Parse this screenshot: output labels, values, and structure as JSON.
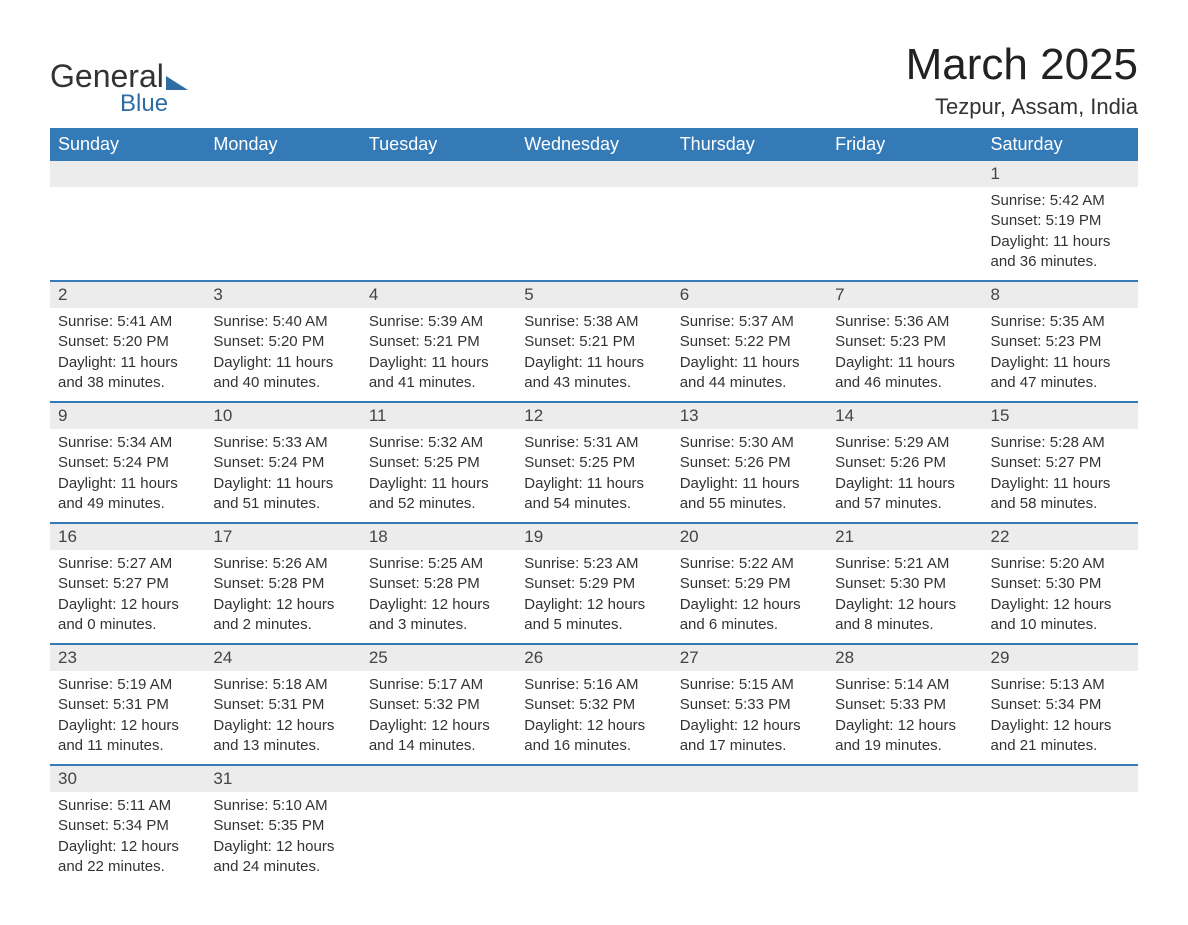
{
  "logo": {
    "text1": "General",
    "text2": "Blue"
  },
  "title": "March 2025",
  "location": "Tezpur, Assam, India",
  "colors": {
    "header_bg": "#337ab7",
    "header_text": "#ffffff",
    "daynum_bg": "#ececec",
    "border": "#337ab7",
    "text": "#333333"
  },
  "day_headers": [
    "Sunday",
    "Monday",
    "Tuesday",
    "Wednesday",
    "Thursday",
    "Friday",
    "Saturday"
  ],
  "weeks": [
    [
      {
        "day": "",
        "sunrise": "",
        "sunset": "",
        "daylight1": "",
        "daylight2": ""
      },
      {
        "day": "",
        "sunrise": "",
        "sunset": "",
        "daylight1": "",
        "daylight2": ""
      },
      {
        "day": "",
        "sunrise": "",
        "sunset": "",
        "daylight1": "",
        "daylight2": ""
      },
      {
        "day": "",
        "sunrise": "",
        "sunset": "",
        "daylight1": "",
        "daylight2": ""
      },
      {
        "day": "",
        "sunrise": "",
        "sunset": "",
        "daylight1": "",
        "daylight2": ""
      },
      {
        "day": "",
        "sunrise": "",
        "sunset": "",
        "daylight1": "",
        "daylight2": ""
      },
      {
        "day": "1",
        "sunrise": "Sunrise: 5:42 AM",
        "sunset": "Sunset: 5:19 PM",
        "daylight1": "Daylight: 11 hours",
        "daylight2": "and 36 minutes."
      }
    ],
    [
      {
        "day": "2",
        "sunrise": "Sunrise: 5:41 AM",
        "sunset": "Sunset: 5:20 PM",
        "daylight1": "Daylight: 11 hours",
        "daylight2": "and 38 minutes."
      },
      {
        "day": "3",
        "sunrise": "Sunrise: 5:40 AM",
        "sunset": "Sunset: 5:20 PM",
        "daylight1": "Daylight: 11 hours",
        "daylight2": "and 40 minutes."
      },
      {
        "day": "4",
        "sunrise": "Sunrise: 5:39 AM",
        "sunset": "Sunset: 5:21 PM",
        "daylight1": "Daylight: 11 hours",
        "daylight2": "and 41 minutes."
      },
      {
        "day": "5",
        "sunrise": "Sunrise: 5:38 AM",
        "sunset": "Sunset: 5:21 PM",
        "daylight1": "Daylight: 11 hours",
        "daylight2": "and 43 minutes."
      },
      {
        "day": "6",
        "sunrise": "Sunrise: 5:37 AM",
        "sunset": "Sunset: 5:22 PM",
        "daylight1": "Daylight: 11 hours",
        "daylight2": "and 44 minutes."
      },
      {
        "day": "7",
        "sunrise": "Sunrise: 5:36 AM",
        "sunset": "Sunset: 5:23 PM",
        "daylight1": "Daylight: 11 hours",
        "daylight2": "and 46 minutes."
      },
      {
        "day": "8",
        "sunrise": "Sunrise: 5:35 AM",
        "sunset": "Sunset: 5:23 PM",
        "daylight1": "Daylight: 11 hours",
        "daylight2": "and 47 minutes."
      }
    ],
    [
      {
        "day": "9",
        "sunrise": "Sunrise: 5:34 AM",
        "sunset": "Sunset: 5:24 PM",
        "daylight1": "Daylight: 11 hours",
        "daylight2": "and 49 minutes."
      },
      {
        "day": "10",
        "sunrise": "Sunrise: 5:33 AM",
        "sunset": "Sunset: 5:24 PM",
        "daylight1": "Daylight: 11 hours",
        "daylight2": "and 51 minutes."
      },
      {
        "day": "11",
        "sunrise": "Sunrise: 5:32 AM",
        "sunset": "Sunset: 5:25 PM",
        "daylight1": "Daylight: 11 hours",
        "daylight2": "and 52 minutes."
      },
      {
        "day": "12",
        "sunrise": "Sunrise: 5:31 AM",
        "sunset": "Sunset: 5:25 PM",
        "daylight1": "Daylight: 11 hours",
        "daylight2": "and 54 minutes."
      },
      {
        "day": "13",
        "sunrise": "Sunrise: 5:30 AM",
        "sunset": "Sunset: 5:26 PM",
        "daylight1": "Daylight: 11 hours",
        "daylight2": "and 55 minutes."
      },
      {
        "day": "14",
        "sunrise": "Sunrise: 5:29 AM",
        "sunset": "Sunset: 5:26 PM",
        "daylight1": "Daylight: 11 hours",
        "daylight2": "and 57 minutes."
      },
      {
        "day": "15",
        "sunrise": "Sunrise: 5:28 AM",
        "sunset": "Sunset: 5:27 PM",
        "daylight1": "Daylight: 11 hours",
        "daylight2": "and 58 minutes."
      }
    ],
    [
      {
        "day": "16",
        "sunrise": "Sunrise: 5:27 AM",
        "sunset": "Sunset: 5:27 PM",
        "daylight1": "Daylight: 12 hours",
        "daylight2": "and 0 minutes."
      },
      {
        "day": "17",
        "sunrise": "Sunrise: 5:26 AM",
        "sunset": "Sunset: 5:28 PM",
        "daylight1": "Daylight: 12 hours",
        "daylight2": "and 2 minutes."
      },
      {
        "day": "18",
        "sunrise": "Sunrise: 5:25 AM",
        "sunset": "Sunset: 5:28 PM",
        "daylight1": "Daylight: 12 hours",
        "daylight2": "and 3 minutes."
      },
      {
        "day": "19",
        "sunrise": "Sunrise: 5:23 AM",
        "sunset": "Sunset: 5:29 PM",
        "daylight1": "Daylight: 12 hours",
        "daylight2": "and 5 minutes."
      },
      {
        "day": "20",
        "sunrise": "Sunrise: 5:22 AM",
        "sunset": "Sunset: 5:29 PM",
        "daylight1": "Daylight: 12 hours",
        "daylight2": "and 6 minutes."
      },
      {
        "day": "21",
        "sunrise": "Sunrise: 5:21 AM",
        "sunset": "Sunset: 5:30 PM",
        "daylight1": "Daylight: 12 hours",
        "daylight2": "and 8 minutes."
      },
      {
        "day": "22",
        "sunrise": "Sunrise: 5:20 AM",
        "sunset": "Sunset: 5:30 PM",
        "daylight1": "Daylight: 12 hours",
        "daylight2": "and 10 minutes."
      }
    ],
    [
      {
        "day": "23",
        "sunrise": "Sunrise: 5:19 AM",
        "sunset": "Sunset: 5:31 PM",
        "daylight1": "Daylight: 12 hours",
        "daylight2": "and 11 minutes."
      },
      {
        "day": "24",
        "sunrise": "Sunrise: 5:18 AM",
        "sunset": "Sunset: 5:31 PM",
        "daylight1": "Daylight: 12 hours",
        "daylight2": "and 13 minutes."
      },
      {
        "day": "25",
        "sunrise": "Sunrise: 5:17 AM",
        "sunset": "Sunset: 5:32 PM",
        "daylight1": "Daylight: 12 hours",
        "daylight2": "and 14 minutes."
      },
      {
        "day": "26",
        "sunrise": "Sunrise: 5:16 AM",
        "sunset": "Sunset: 5:32 PM",
        "daylight1": "Daylight: 12 hours",
        "daylight2": "and 16 minutes."
      },
      {
        "day": "27",
        "sunrise": "Sunrise: 5:15 AM",
        "sunset": "Sunset: 5:33 PM",
        "daylight1": "Daylight: 12 hours",
        "daylight2": "and 17 minutes."
      },
      {
        "day": "28",
        "sunrise": "Sunrise: 5:14 AM",
        "sunset": "Sunset: 5:33 PM",
        "daylight1": "Daylight: 12 hours",
        "daylight2": "and 19 minutes."
      },
      {
        "day": "29",
        "sunrise": "Sunrise: 5:13 AM",
        "sunset": "Sunset: 5:34 PM",
        "daylight1": "Daylight: 12 hours",
        "daylight2": "and 21 minutes."
      }
    ],
    [
      {
        "day": "30",
        "sunrise": "Sunrise: 5:11 AM",
        "sunset": "Sunset: 5:34 PM",
        "daylight1": "Daylight: 12 hours",
        "daylight2": "and 22 minutes."
      },
      {
        "day": "31",
        "sunrise": "Sunrise: 5:10 AM",
        "sunset": "Sunset: 5:35 PM",
        "daylight1": "Daylight: 12 hours",
        "daylight2": "and 24 minutes."
      },
      {
        "day": "",
        "sunrise": "",
        "sunset": "",
        "daylight1": "",
        "daylight2": ""
      },
      {
        "day": "",
        "sunrise": "",
        "sunset": "",
        "daylight1": "",
        "daylight2": ""
      },
      {
        "day": "",
        "sunrise": "",
        "sunset": "",
        "daylight1": "",
        "daylight2": ""
      },
      {
        "day": "",
        "sunrise": "",
        "sunset": "",
        "daylight1": "",
        "daylight2": ""
      },
      {
        "day": "",
        "sunrise": "",
        "sunset": "",
        "daylight1": "",
        "daylight2": ""
      }
    ]
  ]
}
